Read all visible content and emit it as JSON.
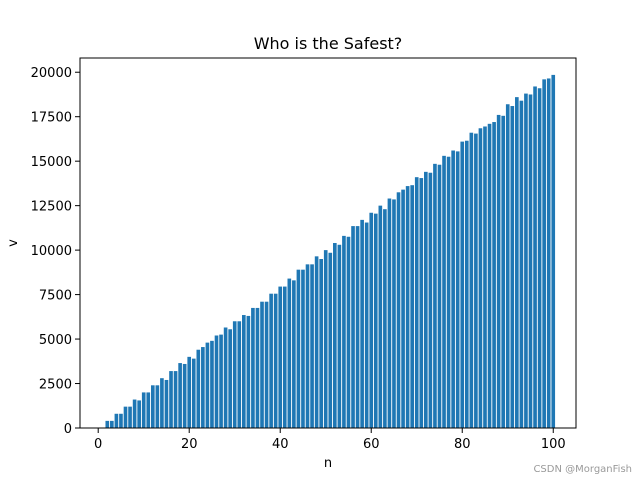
{
  "chart_data": {
    "type": "bar",
    "title": "Who is the Safest?",
    "xlabel": "n",
    "ylabel": "v",
    "xlim": [
      -4,
      105
    ],
    "ylim": [
      0,
      20800
    ],
    "xticks": [
      0,
      20,
      40,
      60,
      80,
      100
    ],
    "yticks": [
      0,
      2500,
      5000,
      7500,
      10000,
      12500,
      15000,
      17500,
      20000
    ],
    "grid": false,
    "legend": "none",
    "bar_color": "#1f77b4",
    "x": [
      2,
      3,
      4,
      5,
      6,
      7,
      8,
      9,
      10,
      11,
      12,
      13,
      14,
      15,
      16,
      17,
      18,
      19,
      20,
      21,
      22,
      23,
      24,
      25,
      26,
      27,
      28,
      29,
      30,
      31,
      32,
      33,
      34,
      35,
      36,
      37,
      38,
      39,
      40,
      41,
      42,
      43,
      44,
      45,
      46,
      47,
      48,
      49,
      50,
      51,
      52,
      53,
      54,
      55,
      56,
      57,
      58,
      59,
      60,
      61,
      62,
      63,
      64,
      65,
      66,
      67,
      68,
      69,
      70,
      71,
      72,
      73,
      74,
      75,
      76,
      77,
      78,
      79,
      80,
      81,
      82,
      83,
      84,
      85,
      86,
      87,
      88,
      89,
      90,
      91,
      92,
      93,
      94,
      95,
      96,
      97,
      98,
      99,
      100
    ],
    "values": [
      400,
      400,
      800,
      800,
      1200,
      1200,
      1600,
      1550,
      2000,
      2000,
      2400,
      2400,
      2800,
      2700,
      3200,
      3200,
      3650,
      3600,
      4000,
      3900,
      4400,
      4550,
      4800,
      4900,
      5200,
      5250,
      5650,
      5550,
      6000,
      6000,
      6350,
      6300,
      6750,
      6750,
      7100,
      7100,
      7550,
      7550,
      7950,
      7950,
      8400,
      8300,
      8900,
      8900,
      9200,
      9200,
      9650,
      9500,
      10000,
      9850,
      10400,
      10300,
      10800,
      10750,
      11350,
      11350,
      11700,
      11550,
      12100,
      12050,
      12500,
      12300,
      12900,
      12850,
      13250,
      13400,
      13600,
      13650,
      14100,
      14050,
      14400,
      14350,
      14850,
      14800,
      15300,
      15250,
      15600,
      15550,
      16100,
      16150,
      16600,
      16550,
      16850,
      16950,
      17100,
      17200,
      17600,
      17550,
      18200,
      18100,
      18600,
      18400,
      18800,
      18750,
      19200,
      19100,
      19600,
      19650,
      19850
    ]
  },
  "watermark": "CSDN @MorganFish"
}
